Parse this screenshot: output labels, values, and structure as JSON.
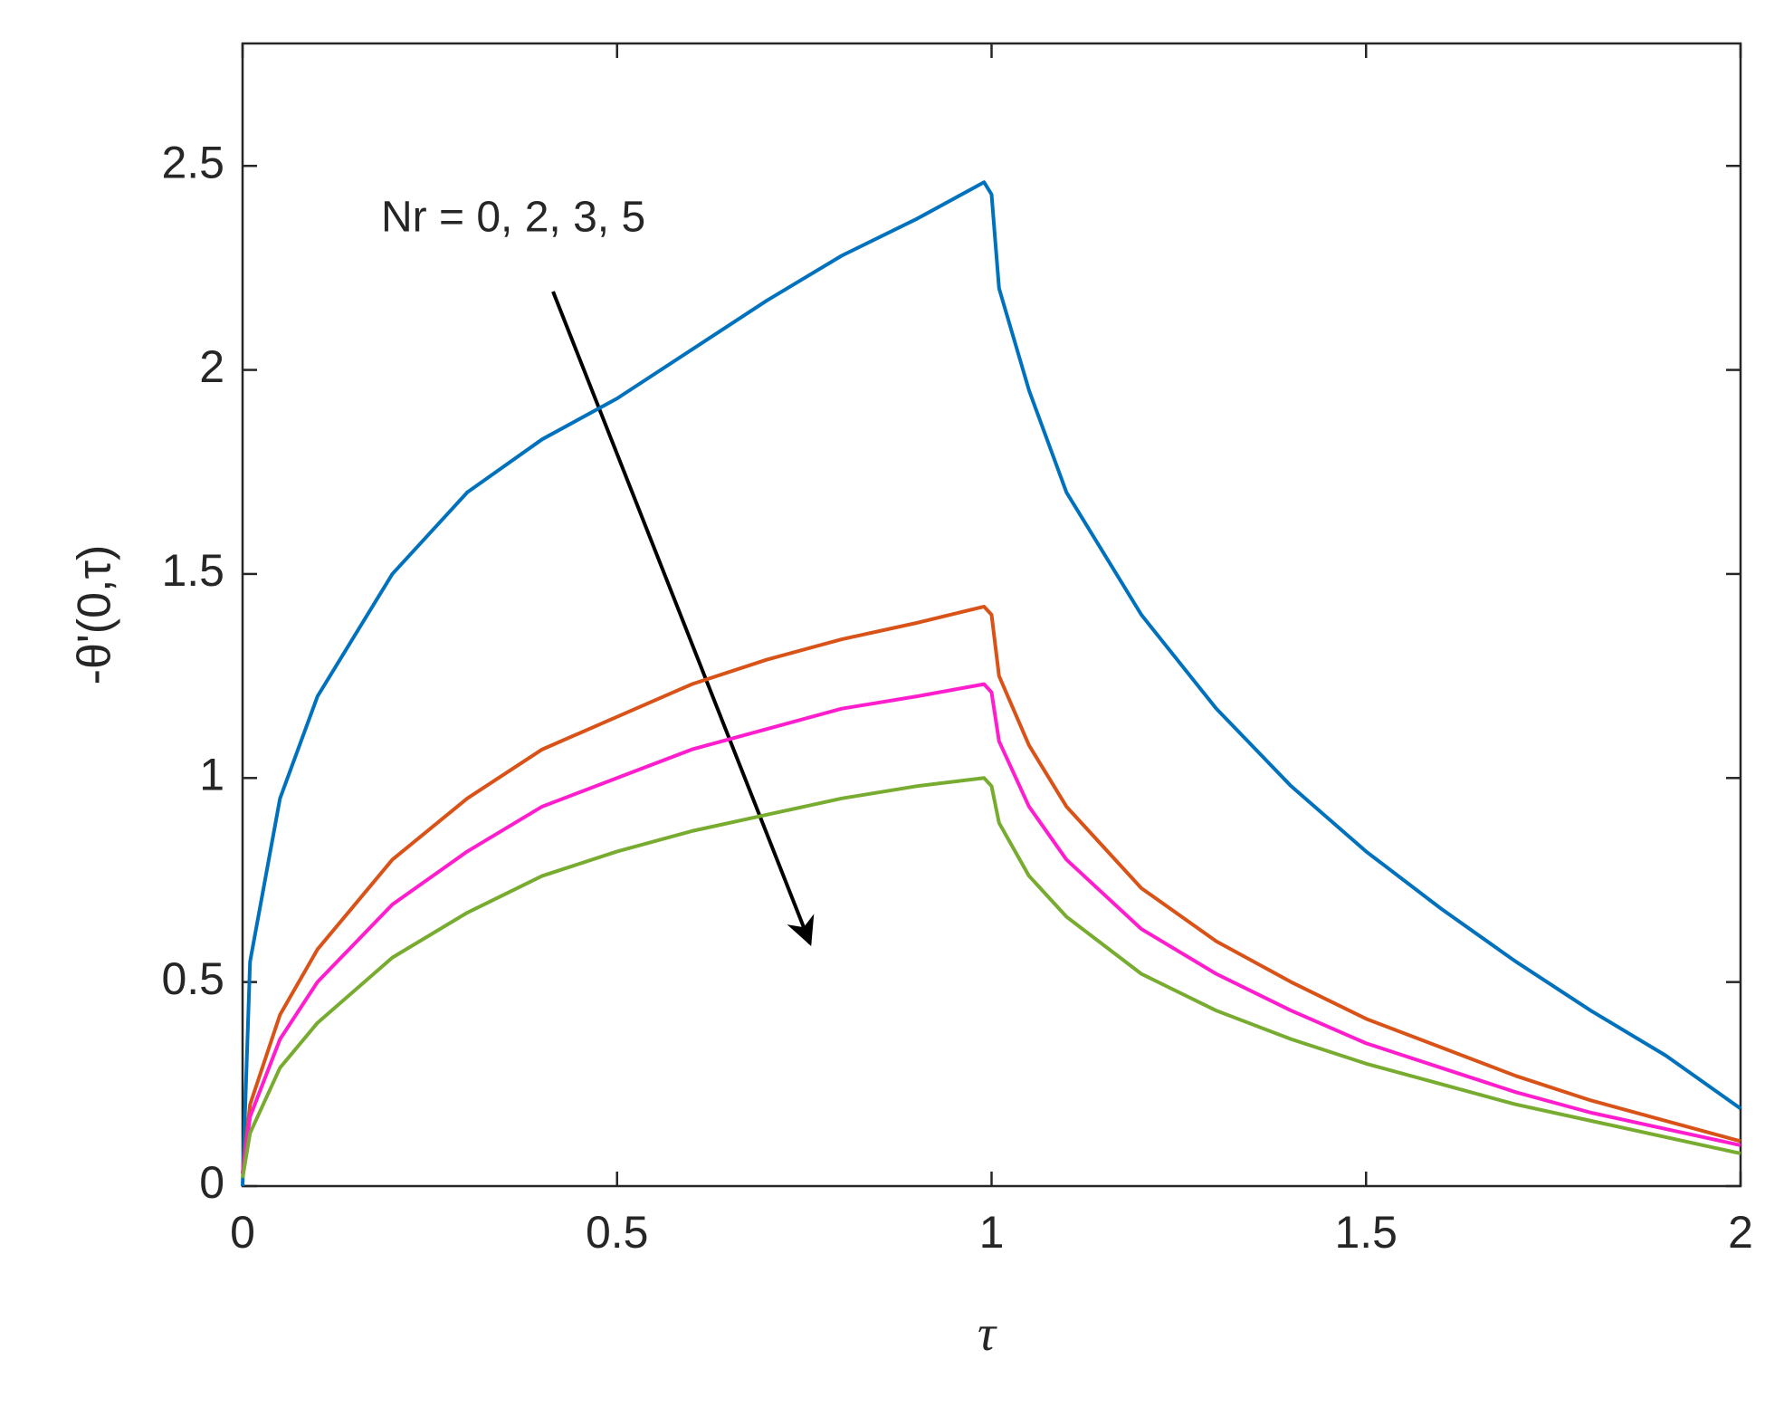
{
  "chart_data": {
    "type": "line",
    "xlabel": "τ",
    "ylabel": "-θ'(0,τ)",
    "annotation": "Nr = 0, 2, 3, 5",
    "x": [
      0,
      0.01,
      0.05,
      0.1,
      0.2,
      0.3,
      0.4,
      0.5,
      0.6,
      0.7,
      0.8,
      0.9,
      0.99,
      1.0,
      1.01,
      1.05,
      1.1,
      1.2,
      1.3,
      1.4,
      1.5,
      1.6,
      1.7,
      1.8,
      1.9,
      2.0
    ],
    "series": [
      {
        "color": "#0072bd",
        "values": [
          0,
          0.55,
          0.95,
          1.2,
          1.5,
          1.7,
          1.83,
          1.93,
          2.05,
          2.17,
          2.28,
          2.37,
          2.46,
          2.43,
          2.2,
          1.95,
          1.7,
          1.4,
          1.17,
          0.98,
          0.82,
          0.68,
          0.55,
          0.43,
          0.32,
          0.19
        ]
      },
      {
        "color": "#d95319",
        "values": [
          0.03,
          0.2,
          0.42,
          0.58,
          0.8,
          0.95,
          1.07,
          1.15,
          1.23,
          1.29,
          1.34,
          1.38,
          1.42,
          1.4,
          1.25,
          1.08,
          0.93,
          0.73,
          0.6,
          0.5,
          0.41,
          0.34,
          0.27,
          0.21,
          0.16,
          0.11
        ]
      },
      {
        "color": "#ff1dce",
        "values": [
          0.03,
          0.17,
          0.36,
          0.5,
          0.69,
          0.82,
          0.93,
          1.0,
          1.07,
          1.12,
          1.17,
          1.2,
          1.23,
          1.21,
          1.09,
          0.93,
          0.8,
          0.63,
          0.52,
          0.43,
          0.35,
          0.29,
          0.23,
          0.18,
          0.14,
          0.1
        ]
      },
      {
        "color": "#77ac30",
        "values": [
          0.02,
          0.13,
          0.29,
          0.4,
          0.56,
          0.67,
          0.76,
          0.82,
          0.87,
          0.91,
          0.95,
          0.98,
          1.0,
          0.98,
          0.89,
          0.76,
          0.66,
          0.52,
          0.43,
          0.36,
          0.3,
          0.25,
          0.2,
          0.16,
          0.12,
          0.08
        ]
      }
    ],
    "xlim": [
      0,
      2
    ],
    "xticks": [
      0,
      0.5,
      1,
      1.5,
      2
    ],
    "ylim": [
      0,
      2.8
    ],
    "yticks": [
      0,
      0.5,
      1,
      1.5,
      2,
      2.5
    ],
    "grid": false
  }
}
